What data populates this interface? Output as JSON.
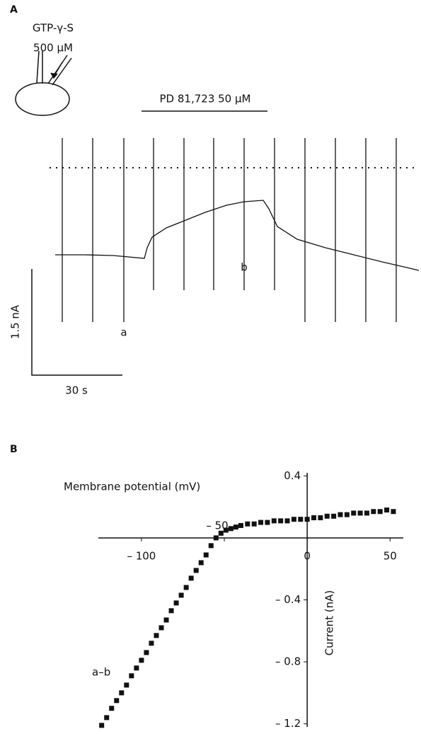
{
  "panel_a": {
    "panel_label": "A",
    "agent": "GTP-γ-S",
    "agent_conc": "500 μM",
    "drug": "PD 81,723 50 μM",
    "label_a": "a",
    "label_b": "b",
    "scale_current": "1.5 nA",
    "scale_time": "30 s"
  },
  "chart_data": {
    "type": "scatter",
    "panel_label": "B",
    "x_label": "Membrane potential (mV)",
    "y_label": "Current (nA)",
    "annotation": "a–b",
    "color": "#111111",
    "x": [
      -124,
      -121,
      -118,
      -115,
      -112,
      -109,
      -106,
      -103,
      -100,
      -97,
      -94,
      -91,
      -88,
      -85,
      -82,
      -79,
      -76,
      -73,
      -70,
      -67,
      -64,
      -61,
      -58,
      -55,
      -52,
      -49,
      -46,
      -43,
      -40,
      -36,
      -32,
      -28,
      -24,
      -20,
      -16,
      -12,
      -8,
      -4,
      0,
      4,
      8,
      12,
      16,
      20,
      24,
      28,
      32,
      36,
      40,
      44,
      48,
      52
    ],
    "values": [
      -1.21,
      -1.16,
      -1.1,
      -1.05,
      -1.0,
      -0.95,
      -0.89,
      -0.84,
      -0.79,
      -0.74,
      -0.68,
      -0.63,
      -0.58,
      -0.53,
      -0.47,
      -0.42,
      -0.37,
      -0.32,
      -0.26,
      -0.21,
      -0.16,
      -0.11,
      -0.05,
      0.0,
      0.03,
      0.05,
      0.06,
      0.07,
      0.08,
      0.09,
      0.09,
      0.1,
      0.1,
      0.11,
      0.11,
      0.11,
      0.12,
      0.12,
      0.12,
      0.13,
      0.13,
      0.14,
      0.14,
      0.15,
      0.15,
      0.16,
      0.16,
      0.16,
      0.17,
      0.17,
      0.18,
      0.17
    ],
    "xlim": [
      -126,
      58
    ],
    "ylim": [
      -1.22,
      0.42
    ],
    "xticks": [
      {
        "value": -100,
        "label": "– 100"
      },
      {
        "value": -50,
        "label": "– 50"
      },
      0,
      50
    ],
    "yticks": [
      0.4,
      {
        "value": -0.4,
        "label": "– 0.4"
      },
      {
        "value": -0.8,
        "label": "– 0.8"
      },
      {
        "value": -1.2,
        "label": "– 1.2"
      }
    ]
  }
}
